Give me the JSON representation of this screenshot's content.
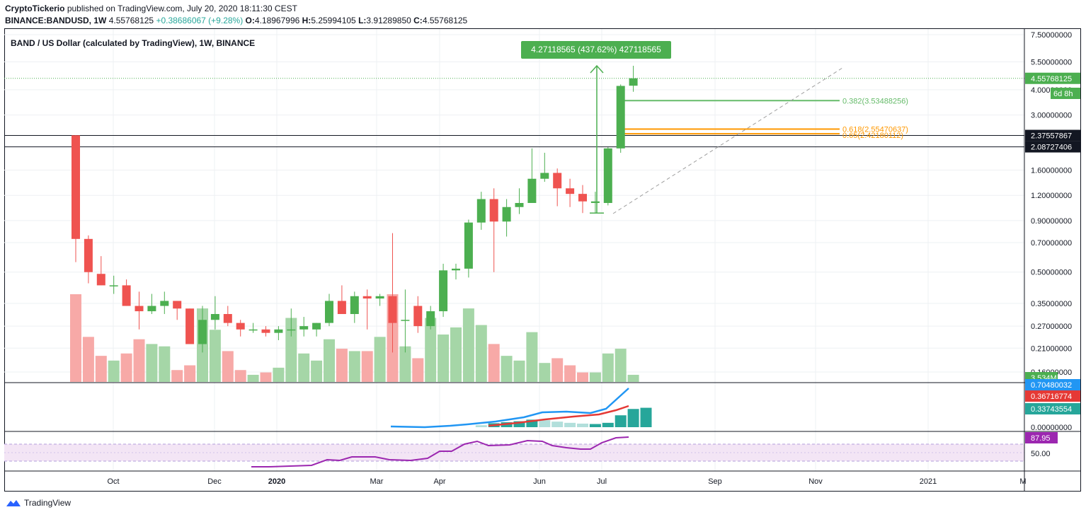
{
  "header": {
    "publisher": "CryptoTickerio",
    "published_text": "published on TradingView.com, July 20, 2020 18:11:30 CEST",
    "symbol": "BINANCE:BANDUSD, 1W",
    "ohlc": {
      "o_label": "O:",
      "o": "4.18967996",
      "h_label": "H:",
      "h": "5.25994105",
      "l_label": "L:",
      "l": "3.91289850",
      "c_label": "C:",
      "c": "4.55768125"
    },
    "price": "4.55768125",
    "change": "+0.38686067 (+9.28%)"
  },
  "legend": {
    "title": "BAND / US Dollar (calculated by TradingView), 1W, BINANCE"
  },
  "measure_label": "4.27118565 (437.62%) 427118565",
  "fib_labels": [
    "0.382(3.53488256)",
    "0.618(2.55470637)",
    "0.65(2.42180112)"
  ],
  "price_badges": {
    "last": "4.55768125",
    "countdown": "6d 8h",
    "level1": "2.37557867",
    "level2": "2.08727406",
    "volume": "3.534M",
    "vol_ma": "0.70480032",
    "ind_red": "0.36716774",
    "ind_teal": "0.33743554",
    "rsi": "87.95"
  },
  "footer": {
    "brand": "TradingView"
  },
  "colors": {
    "up": "#4caf50",
    "down": "#ef5350",
    "blue": "#2196f3",
    "red": "#e53935",
    "teal": "#26a69a",
    "purple": "#9c27b0",
    "fib_green": "#66bb6a",
    "fib_orange": "#ff9800",
    "measure": "#4caf50"
  },
  "chart_data": {
    "type": "candlestick",
    "interval": "1W",
    "y_axis_scale": "log",
    "y_ticks": [
      "7.50000000",
      "5.50000000",
      "4.00000000",
      "3.00000000",
      "1.60000000",
      "1.20000000",
      "0.90000000",
      "0.70000000",
      "0.50000000",
      "0.35000000",
      "0.27000000",
      "0.21000000",
      "0.16000000"
    ],
    "lower_ticks": [
      "0.00000000"
    ],
    "rsi_ticks": [
      "50.00"
    ],
    "x_ticks": [
      "Oct",
      "Dec",
      "2020",
      "Mar",
      "Apr",
      "Jun",
      "Jul",
      "Sep",
      "Nov",
      "2021",
      "M"
    ],
    "candles": [
      {
        "o": 2.38,
        "h": 2.38,
        "l": 0.56,
        "c": 0.73,
        "v": 0.37
      },
      {
        "o": 0.73,
        "h": 0.76,
        "l": 0.44,
        "c": 0.5,
        "v": 0.19
      },
      {
        "o": 0.49,
        "h": 0.6,
        "l": 0.43,
        "c": 0.43,
        "v": 0.11
      },
      {
        "o": 0.43,
        "h": 0.48,
        "l": 0.39,
        "c": 0.43,
        "v": 0.09
      },
      {
        "o": 0.43,
        "h": 0.46,
        "l": 0.34,
        "c": 0.34,
        "v": 0.12
      },
      {
        "o": 0.34,
        "h": 0.4,
        "l": 0.26,
        "c": 0.32,
        "v": 0.18
      },
      {
        "o": 0.32,
        "h": 0.39,
        "l": 0.31,
        "c": 0.34,
        "v": 0.16
      },
      {
        "o": 0.34,
        "h": 0.4,
        "l": 0.31,
        "c": 0.36,
        "v": 0.15
      },
      {
        "o": 0.36,
        "h": 0.36,
        "l": 0.29,
        "c": 0.33,
        "v": 0.05
      },
      {
        "o": 0.33,
        "h": 0.33,
        "l": 0.22,
        "c": 0.22,
        "v": 0.07
      },
      {
        "o": 0.22,
        "h": 0.34,
        "l": 0.2,
        "c": 0.29,
        "v": 0.31
      },
      {
        "o": 0.29,
        "h": 0.38,
        "l": 0.26,
        "c": 0.31,
        "v": 0.22
      },
      {
        "o": 0.31,
        "h": 0.34,
        "l": 0.27,
        "c": 0.28,
        "v": 0.13
      },
      {
        "o": 0.28,
        "h": 0.29,
        "l": 0.24,
        "c": 0.26,
        "v": 0.05
      },
      {
        "o": 0.26,
        "h": 0.28,
        "l": 0.25,
        "c": 0.26,
        "v": 0.03
      },
      {
        "o": 0.26,
        "h": 0.27,
        "l": 0.24,
        "c": 0.25,
        "v": 0.04
      },
      {
        "o": 0.25,
        "h": 0.27,
        "l": 0.23,
        "c": 0.26,
        "v": 0.06
      },
      {
        "o": 0.26,
        "h": 0.33,
        "l": 0.24,
        "c": 0.26,
        "v": 0.27
      },
      {
        "o": 0.26,
        "h": 0.3,
        "l": 0.24,
        "c": 0.27,
        "v": 0.12
      },
      {
        "o": 0.26,
        "h": 0.28,
        "l": 0.24,
        "c": 0.28,
        "v": 0.09
      },
      {
        "o": 0.28,
        "h": 0.39,
        "l": 0.27,
        "c": 0.36,
        "v": 0.18
      },
      {
        "o": 0.36,
        "h": 0.43,
        "l": 0.31,
        "c": 0.31,
        "v": 0.14
      },
      {
        "o": 0.31,
        "h": 0.4,
        "l": 0.28,
        "c": 0.38,
        "v": 0.13
      },
      {
        "o": 0.38,
        "h": 0.41,
        "l": 0.26,
        "c": 0.37,
        "v": 0.13
      },
      {
        "o": 0.37,
        "h": 0.39,
        "l": 0.34,
        "c": 0.38,
        "v": 0.19
      },
      {
        "o": 0.38,
        "h": 0.78,
        "l": 0.2,
        "c": 0.28,
        "v": 0.37
      },
      {
        "o": 0.29,
        "h": 0.41,
        "l": 0.2,
        "c": 0.29,
        "v": 0.15
      },
      {
        "o": 0.34,
        "h": 0.38,
        "l": 0.25,
        "c": 0.27,
        "v": 0.1
      },
      {
        "o": 0.27,
        "h": 0.34,
        "l": 0.26,
        "c": 0.32,
        "v": 0.27
      },
      {
        "o": 0.32,
        "h": 0.55,
        "l": 0.3,
        "c": 0.51,
        "v": 0.2
      },
      {
        "o": 0.51,
        "h": 0.55,
        "l": 0.46,
        "c": 0.52,
        "v": 0.23
      },
      {
        "o": 0.52,
        "h": 0.91,
        "l": 0.47,
        "c": 0.88,
        "v": 0.31
      },
      {
        "o": 0.88,
        "h": 1.25,
        "l": 0.81,
        "c": 1.15,
        "v": 0.24
      },
      {
        "o": 1.15,
        "h": 1.3,
        "l": 0.5,
        "c": 0.89,
        "v": 0.16
      },
      {
        "o": 0.89,
        "h": 1.15,
        "l": 0.75,
        "c": 1.05,
        "v": 0.11
      },
      {
        "o": 1.05,
        "h": 1.3,
        "l": 0.97,
        "c": 1.1,
        "v": 0.09
      },
      {
        "o": 1.1,
        "h": 2.05,
        "l": 1.1,
        "c": 1.45,
        "v": 0.21
      },
      {
        "o": 1.45,
        "h": 1.95,
        "l": 1.4,
        "c": 1.55,
        "v": 0.08
      },
      {
        "o": 1.55,
        "h": 1.63,
        "l": 1.06,
        "c": 1.3,
        "v": 0.1
      },
      {
        "o": 1.3,
        "h": 1.45,
        "l": 1.05,
        "c": 1.22,
        "v": 0.07
      },
      {
        "o": 1.22,
        "h": 1.35,
        "l": 0.98,
        "c": 1.12,
        "v": 0.04
      },
      {
        "o": 1.1,
        "h": 1.25,
        "l": 0.98,
        "c": 1.12,
        "v": 0.04
      },
      {
        "o": 1.1,
        "h": 2.08,
        "l": 1.07,
        "c": 2.05,
        "v": 0.12
      },
      {
        "o": 2.05,
        "h": 4.25,
        "l": 1.95,
        "c": 4.18,
        "v": 0.14
      },
      {
        "o": 4.19,
        "h": 5.26,
        "l": 3.91,
        "c": 4.56,
        "v": 0.03
      }
    ]
  }
}
